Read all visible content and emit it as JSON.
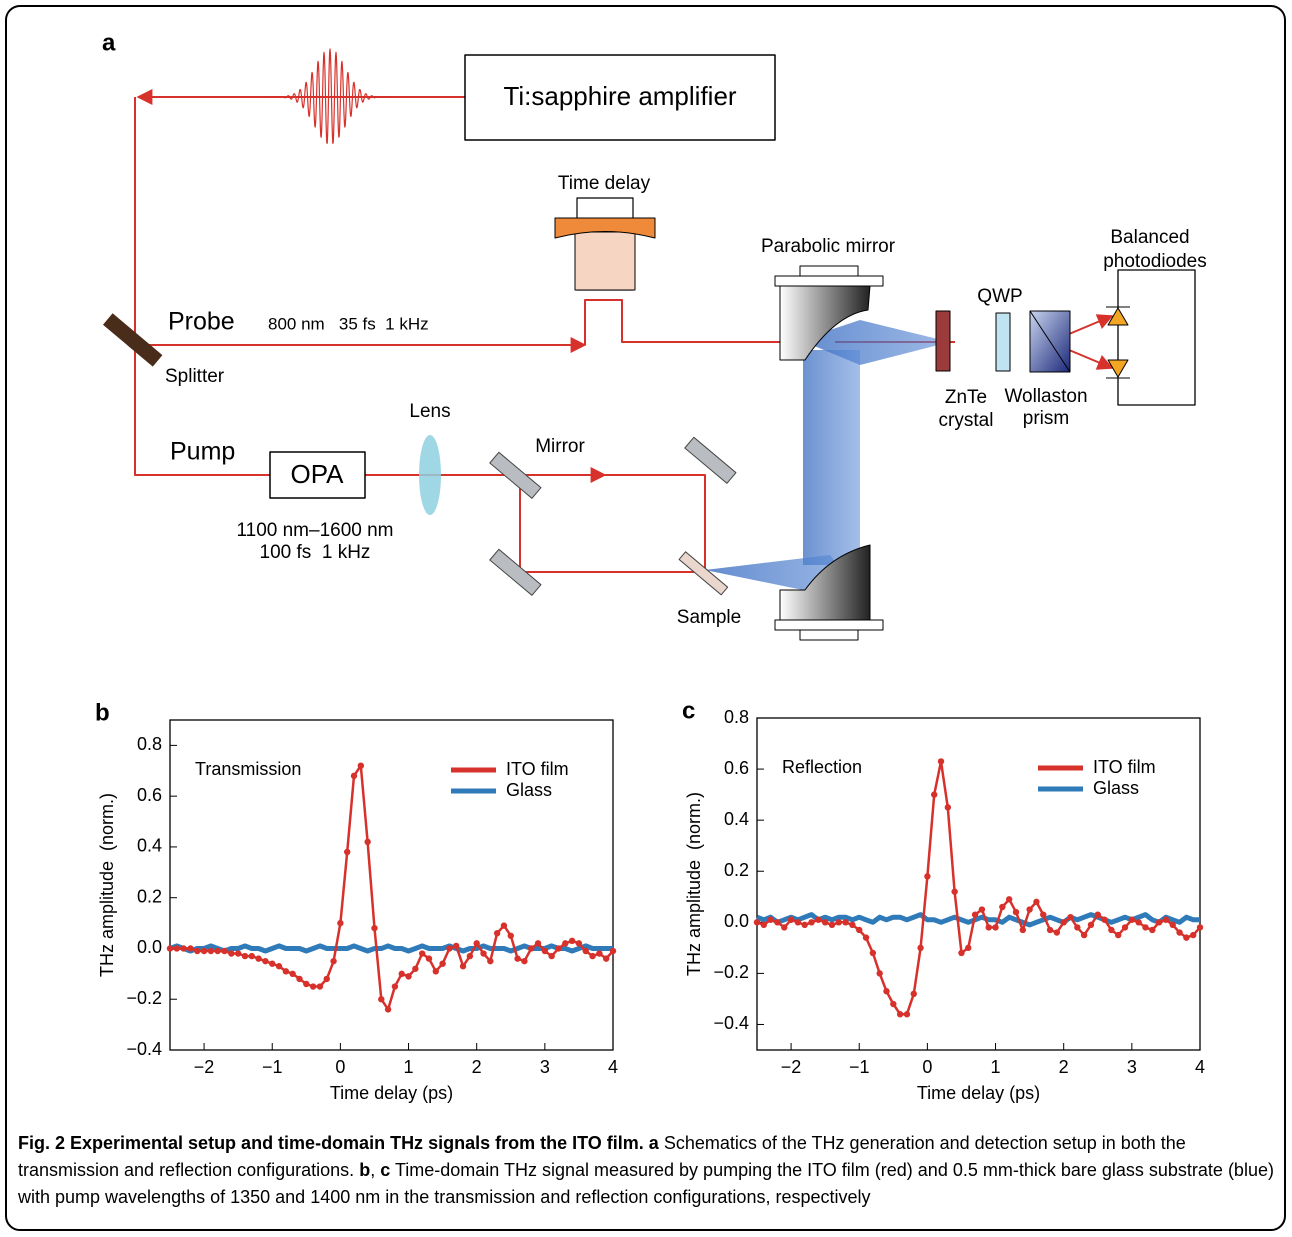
{
  "panel_a": {
    "label": "a",
    "amplifier": "Ti:sapphire amplifier",
    "time_delay": "Time delay",
    "parabolic_mirror": "Parabolic mirror",
    "photodiodes": [
      "Balanced",
      "photodiodes"
    ],
    "qwp": "QWP",
    "probe": "Probe",
    "probe_params": "800 nm   35 fs  1 kHz",
    "splitter": "Splitter",
    "lens": "Lens",
    "pump": "Pump",
    "opa": "OPA",
    "mirror": "Mirror",
    "pump_params": [
      "1100 nm–1600 nm",
      "100 fs  1 kHz"
    ],
    "sample": "Sample",
    "znte": [
      "ZnTe",
      "crystal"
    ],
    "wollaston": [
      "Wollaston",
      "prism"
    ]
  },
  "chart_data": [
    {
      "type": "line",
      "panel_label": "b",
      "annotation": "Transmission",
      "xlabel": "Time delay (ps)",
      "ylabel": "THz amplitude  (norm.)",
      "legend": "upper right",
      "x": [
        -2.5,
        -2.4,
        -2.3,
        -2.2,
        -2.1,
        -2.0,
        -1.9,
        -1.8,
        -1.7,
        -1.6,
        -1.5,
        -1.4,
        -1.3,
        -1.2,
        -1.1,
        -1.0,
        -0.9,
        -0.8,
        -0.7,
        -0.6,
        -0.5,
        -0.4,
        -0.3,
        -0.2,
        -0.1,
        0.0,
        0.1,
        0.2,
        0.3,
        0.4,
        0.5,
        0.6,
        0.7,
        0.8,
        0.9,
        1.0,
        1.1,
        1.2,
        1.3,
        1.4,
        1.5,
        1.6,
        1.7,
        1.8,
        1.9,
        2.0,
        2.1,
        2.2,
        2.3,
        2.4,
        2.5,
        2.6,
        2.7,
        2.8,
        2.9,
        3.0,
        3.1,
        3.2,
        3.3,
        3.4,
        3.5,
        3.6,
        3.7,
        3.8,
        3.9,
        4.0
      ],
      "series": [
        {
          "name": "ITO film",
          "color": "#d7312b",
          "markers": true,
          "values": [
            0.0,
            0.0,
            0.0,
            0.0,
            -0.01,
            -0.01,
            -0.01,
            -0.01,
            -0.01,
            -0.02,
            -0.02,
            -0.03,
            -0.03,
            -0.04,
            -0.05,
            -0.06,
            -0.07,
            -0.09,
            -0.1,
            -0.12,
            -0.14,
            -0.15,
            -0.15,
            -0.12,
            -0.05,
            0.1,
            0.38,
            0.68,
            0.72,
            0.42,
            0.08,
            -0.2,
            -0.24,
            -0.15,
            -0.1,
            -0.11,
            -0.08,
            -0.02,
            -0.04,
            -0.09,
            -0.06,
            0.0,
            0.01,
            -0.07,
            -0.03,
            0.02,
            -0.02,
            -0.05,
            0.06,
            0.09,
            0.05,
            -0.04,
            -0.05,
            0.0,
            0.02,
            -0.01,
            -0.03,
            0.0,
            0.02,
            0.03,
            0.02,
            -0.01,
            -0.03,
            -0.02,
            -0.04,
            -0.01
          ]
        },
        {
          "name": "Glass",
          "color": "#2f7ab8",
          "markers": false,
          "values": [
            0.0,
            0.01,
            0.0,
            -0.01,
            0.0,
            0.0,
            0.01,
            0.0,
            -0.01,
            0.0,
            0.0,
            0.01,
            0.0,
            0.0,
            -0.01,
            0.0,
            0.01,
            0.0,
            0.0,
            0.0,
            -0.01,
            0.0,
            0.01,
            0.0,
            0.0,
            0.0,
            0.0,
            0.01,
            0.0,
            -0.01,
            0.0,
            0.0,
            0.01,
            0.0,
            0.0,
            -0.01,
            0.0,
            0.01,
            0.0,
            0.0,
            0.0,
            0.01,
            0.0,
            -0.01,
            0.0,
            0.0,
            0.01,
            0.0,
            0.0,
            0.0,
            -0.01,
            0.0,
            0.01,
            0.0,
            0.0,
            0.0,
            0.01,
            0.0,
            0.0,
            -0.01,
            0.0,
            0.01,
            0.0,
            0.0,
            0.0,
            0.0
          ]
        }
      ],
      "xlim": [
        -2.5,
        4
      ],
      "xticks": [
        {
          "value": -2,
          "label": "−2"
        },
        {
          "value": -1,
          "label": "−1"
        },
        0,
        1,
        2,
        3,
        4
      ],
      "ylim": [
        -0.4,
        0.9
      ],
      "yticks": [
        {
          "value": -0.4,
          "label": "−0.4"
        },
        {
          "value": -0.2,
          "label": "−0.2"
        },
        {
          "value": 0,
          "label": "0.0"
        },
        0.2,
        0.4,
        0.6,
        0.8
      ]
    },
    {
      "type": "line",
      "panel_label": "c",
      "annotation": "Reflection",
      "xlabel": "Time delay (ps)",
      "ylabel": "THz amplitude  (norm.)",
      "legend": "upper right",
      "x": [
        -2.5,
        -2.4,
        -2.3,
        -2.2,
        -2.1,
        -2.0,
        -1.9,
        -1.8,
        -1.7,
        -1.6,
        -1.5,
        -1.4,
        -1.3,
        -1.2,
        -1.1,
        -1.0,
        -0.9,
        -0.8,
        -0.7,
        -0.6,
        -0.5,
        -0.4,
        -0.3,
        -0.2,
        -0.1,
        0.0,
        0.1,
        0.2,
        0.3,
        0.4,
        0.5,
        0.6,
        0.7,
        0.8,
        0.9,
        1.0,
        1.1,
        1.2,
        1.3,
        1.4,
        1.5,
        1.6,
        1.7,
        1.8,
        1.9,
        2.0,
        2.1,
        2.2,
        2.3,
        2.4,
        2.5,
        2.6,
        2.7,
        2.8,
        2.9,
        3.0,
        3.1,
        3.2,
        3.3,
        3.4,
        3.5,
        3.6,
        3.7,
        3.8,
        3.9,
        4.0
      ],
      "series": [
        {
          "name": "ITO film",
          "color": "#d7312b",
          "markers": true,
          "values": [
            0.0,
            -0.01,
            0.01,
            0.0,
            -0.02,
            0.01,
            0.0,
            -0.01,
            0.0,
            0.01,
            0.0,
            -0.01,
            0.0,
            0.0,
            -0.01,
            -0.03,
            -0.06,
            -0.12,
            -0.2,
            -0.27,
            -0.32,
            -0.36,
            -0.36,
            -0.28,
            -0.1,
            0.18,
            0.5,
            0.63,
            0.45,
            0.12,
            -0.12,
            -0.1,
            0.03,
            0.05,
            -0.02,
            -0.02,
            0.06,
            0.09,
            0.04,
            -0.03,
            0.05,
            0.08,
            0.03,
            -0.03,
            -0.04,
            0.0,
            0.02,
            -0.02,
            -0.05,
            -0.01,
            0.03,
            0.01,
            -0.03,
            -0.05,
            -0.02,
            0.01,
            0.0,
            -0.02,
            -0.03,
            0.0,
            0.01,
            -0.01,
            -0.04,
            -0.06,
            -0.05,
            -0.02
          ]
        },
        {
          "name": "Glass",
          "color": "#2f7ab8",
          "markers": false,
          "values": [
            0.02,
            0.01,
            0.02,
            0.0,
            0.01,
            0.02,
            0.01,
            0.02,
            0.03,
            0.01,
            0.02,
            0.01,
            0.02,
            0.02,
            0.01,
            0.02,
            0.01,
            0.0,
            0.02,
            0.01,
            0.02,
            0.02,
            0.01,
            0.02,
            0.03,
            0.01,
            0.01,
            0.0,
            0.01,
            0.02,
            0.01,
            0.0,
            0.01,
            0.02,
            0.01,
            0.01,
            0.0,
            0.02,
            0.01,
            0.0,
            -0.01,
            0.0,
            0.01,
            0.02,
            0.01,
            0.0,
            0.02,
            0.01,
            0.02,
            0.03,
            0.02,
            0.01,
            0.0,
            0.01,
            0.02,
            0.01,
            0.02,
            0.03,
            0.01,
            0.0,
            0.02,
            0.01,
            0.0,
            0.02,
            0.01,
            0.01
          ]
        }
      ],
      "xlim": [
        -2.5,
        4
      ],
      "xticks": [
        {
          "value": -2,
          "label": "−2"
        },
        {
          "value": -1,
          "label": "−1"
        },
        0,
        1,
        2,
        3,
        4
      ],
      "ylim": [
        -0.5,
        0.8
      ],
      "yticks": [
        {
          "value": -0.4,
          "label": "−0.4"
        },
        {
          "value": -0.2,
          "label": "−0.2"
        },
        {
          "value": 0,
          "label": "0.0"
        },
        0.2,
        0.4,
        0.6,
        0.8
      ]
    }
  ],
  "caption": {
    "segments": [
      {
        "text": "Fig. 2 Experimental setup and time-domain THz signals from the ITO film.",
        "bold": true
      },
      {
        "text": "a",
        "bold": true
      },
      {
        "text": "Schematics of the THz generation and detection setup in both the transmission and reflection configurations.",
        "bold": false
      },
      {
        "text": "b",
        "bold": true
      },
      {
        "text": ",",
        "bold": false
      },
      {
        "text": "c",
        "bold": true
      },
      {
        "text": "Time-domain THz signal measured by pumping the ITO film (red) and 0.5 mm-thick bare glass substrate (blue) with pump wavelengths of 1350 and 1400 nm in the transmission and reflection configurations, respectively",
        "bold": false
      }
    ]
  }
}
